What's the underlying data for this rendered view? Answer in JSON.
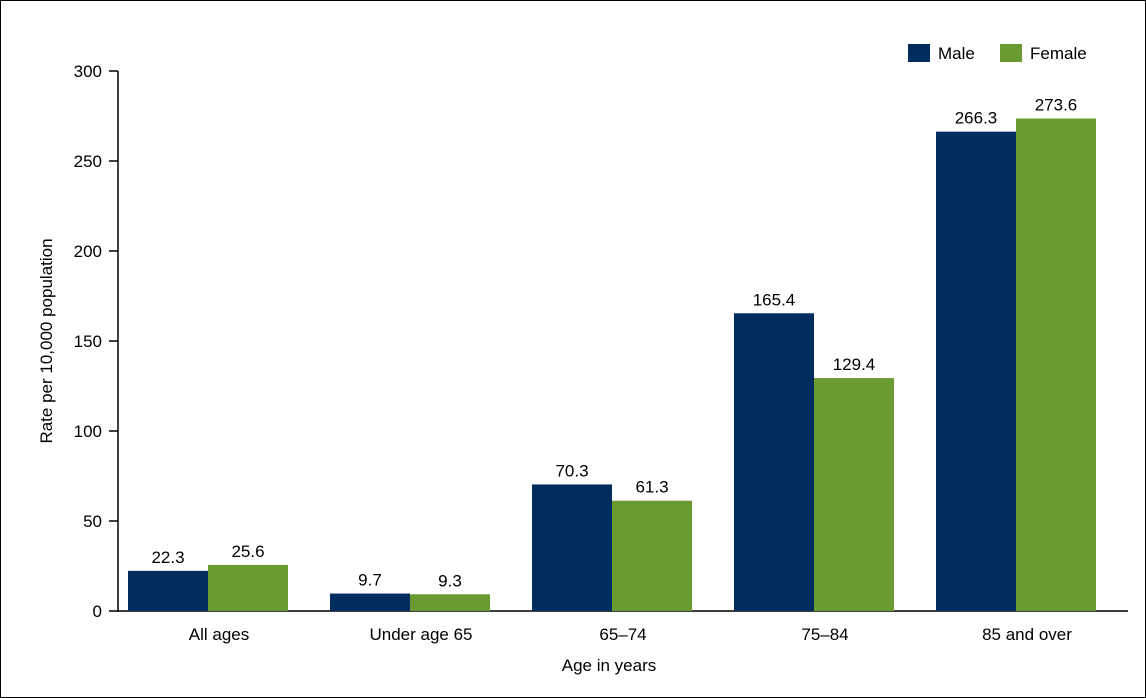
{
  "chart_data": {
    "type": "bar",
    "title": "",
    "xlabel": "Age in years",
    "ylabel": "Rate per 10,000 population",
    "ylim": [
      0,
      300
    ],
    "yticks": [
      0,
      50,
      100,
      150,
      200,
      250,
      300
    ],
    "categories": [
      "All ages",
      "Under age 65",
      "65–74",
      "75–84",
      "85 and over"
    ],
    "series": [
      {
        "name": "Male",
        "color": "#002c5e",
        "values": [
          22.3,
          9.7,
          70.3,
          165.4,
          266.3
        ],
        "labels": [
          "22.3",
          "9.7",
          "70.3",
          "165.4",
          "266.3"
        ]
      },
      {
        "name": "Female",
        "color": "#6a9a32",
        "values": [
          25.6,
          9.3,
          61.3,
          129.4,
          273.6
        ],
        "labels": [
          "25.6",
          "9.3",
          "61.3",
          "129.4",
          "273.6"
        ]
      }
    ],
    "legend_position": "top-right",
    "grid": false
  }
}
